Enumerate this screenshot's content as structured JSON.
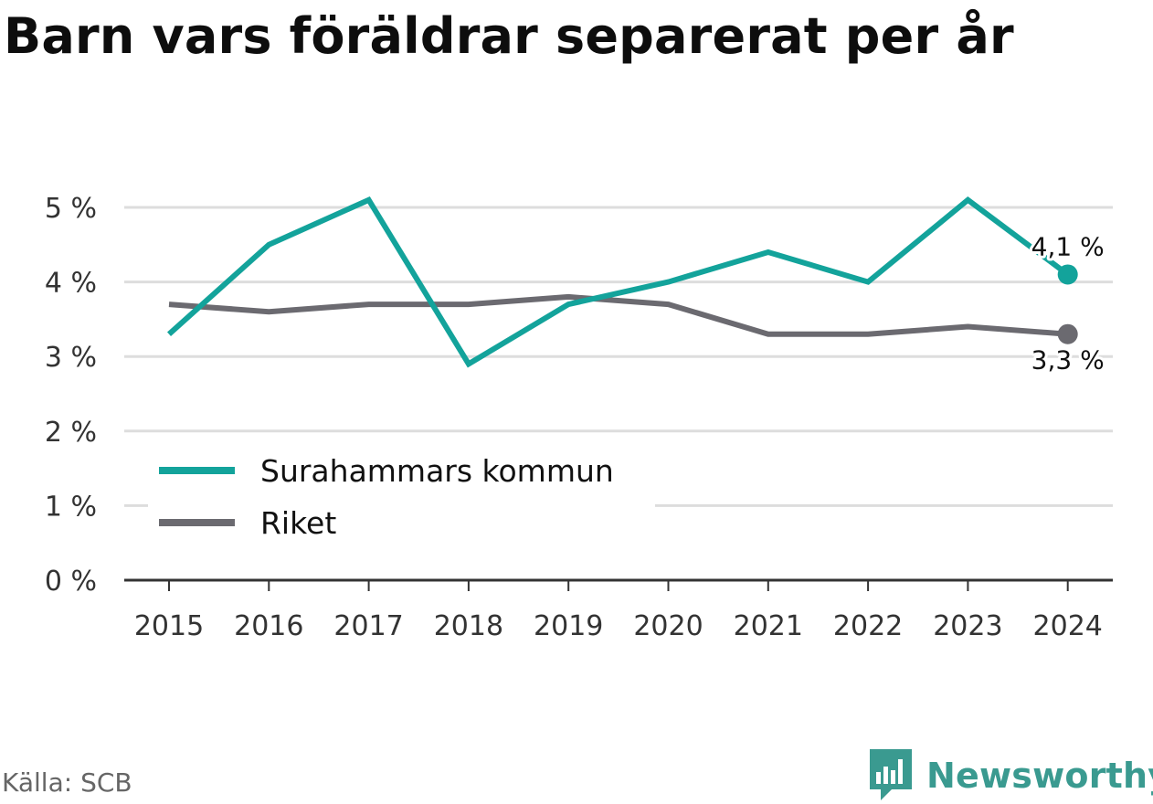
{
  "title": "Barn vars föräldrar separerat per år",
  "source": "Källa: SCB",
  "brand": {
    "name": "Newsworthy",
    "icon": "newsworthy-logo-icon",
    "color": "#3a9a90"
  },
  "chart_data": {
    "type": "line",
    "x": [
      "2015",
      "2016",
      "2017",
      "2018",
      "2019",
      "2020",
      "2021",
      "2022",
      "2023",
      "2024"
    ],
    "ylim": [
      0,
      5
    ],
    "yticks": [
      0,
      1,
      2,
      3,
      4,
      5
    ],
    "ytick_labels": [
      "0 %",
      "1 %",
      "2 %",
      "3 %",
      "4 %",
      "5 %"
    ],
    "grid": true,
    "legend": "bottom-left",
    "series": [
      {
        "name": "Surahammars kommun",
        "color": "#13a39b",
        "values": [
          3.3,
          4.5,
          5.1,
          2.9,
          3.7,
          4.0,
          4.4,
          4.0,
          5.1,
          4.1
        ],
        "end_label": "4,1 %"
      },
      {
        "name": "Riket",
        "color": "#6b6a70",
        "values": [
          3.7,
          3.6,
          3.7,
          3.7,
          3.8,
          3.7,
          3.3,
          3.3,
          3.4,
          3.3
        ],
        "end_label": "3,3 %"
      }
    ]
  }
}
